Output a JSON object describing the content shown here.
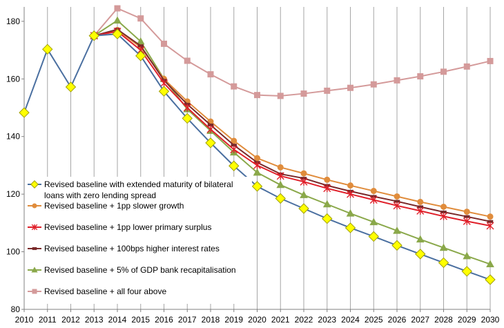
{
  "chart_data": {
    "type": "line",
    "title": "",
    "xlabel": "",
    "ylabel": "",
    "x": [
      2010,
      2011,
      2012,
      2013,
      2014,
      2015,
      2016,
      2017,
      2018,
      2019,
      2020,
      2021,
      2022,
      2023,
      2024,
      2025,
      2026,
      2027,
      2028,
      2029,
      2030
    ],
    "xlim": [
      2010,
      2030
    ],
    "ylim": [
      80,
      185
    ],
    "yticks": [
      80,
      100,
      120,
      140,
      160,
      180
    ],
    "grid": "vertical",
    "legend_position": "lower-left inside plot",
    "series": [
      {
        "name": "Revised baseline with extended maturity of bilateral loans with zero lending spread",
        "color": "#4a6fa0",
        "marker": "diamond",
        "marker_fill": "#ffff00",
        "marker_edge": "#a0a000",
        "x": [
          2010,
          2011,
          2012,
          2013,
          2014,
          2015,
          2016,
          2017,
          2018,
          2019,
          2020,
          2021,
          2022,
          2023,
          2024,
          2025,
          2026,
          2027,
          2028,
          2029,
          2030
        ],
        "values": [
          148.3,
          170.3,
          157.2,
          175.0,
          175.6,
          168.0,
          155.7,
          146.3,
          137.8,
          129.8,
          122.7,
          118.5,
          115.0,
          111.5,
          108.3,
          105.3,
          102.2,
          99.2,
          96.2,
          93.2,
          90.3
        ]
      },
      {
        "name": "Revised baseline + 1pp slower growth",
        "color": "#e08c3c",
        "marker": "circle",
        "marker_fill": "#e08c3c",
        "marker_edge": "#e08c3c",
        "x": [
          2013,
          2014,
          2015,
          2016,
          2017,
          2018,
          2019,
          2020,
          2021,
          2022,
          2023,
          2024,
          2025,
          2026,
          2027,
          2028,
          2029,
          2030
        ],
        "values": [
          175.0,
          177.0,
          171.0,
          160.0,
          152.2,
          145.2,
          138.5,
          132.5,
          129.3,
          127.2,
          125.0,
          123.0,
          121.1,
          119.2,
          117.3,
          115.6,
          113.9,
          112.2
        ]
      },
      {
        "name": "Revised baseline + 1pp lower primary surplus",
        "color": "#e0202a",
        "marker": "star",
        "marker_fill": "#e0202a",
        "marker_edge": "#e0202a",
        "x": [
          2013,
          2014,
          2015,
          2016,
          2017,
          2018,
          2019,
          2020,
          2021,
          2022,
          2023,
          2024,
          2025,
          2026,
          2027,
          2028,
          2029,
          2030
        ],
        "values": [
          175.0,
          176.5,
          170.0,
          158.5,
          150.0,
          142.5,
          135.5,
          130.0,
          126.3,
          124.3,
          122.0,
          120.0,
          118.0,
          116.0,
          114.2,
          112.3,
          110.6,
          109.0
        ]
      },
      {
        "name": "Revised baseline + 100bps higher interest rates",
        "color": "#7a2a2a",
        "marker": "dash",
        "marker_fill": "#7a2a2a",
        "marker_edge": "#7a2a2a",
        "x": [
          2013,
          2014,
          2015,
          2016,
          2017,
          2018,
          2019,
          2020,
          2021,
          2022,
          2023,
          2024,
          2025,
          2026,
          2027,
          2028,
          2029,
          2030
        ],
        "values": [
          175.0,
          177.2,
          171.5,
          159.5,
          151.2,
          144.0,
          137.0,
          131.0,
          127.0,
          125.5,
          123.0,
          121.0,
          119.2,
          117.5,
          115.6,
          113.8,
          112.2,
          110.5
        ]
      },
      {
        "name": "Revised baseline + 5% of GDP bank recapitalisation",
        "color": "#8aa84a",
        "marker": "triangle",
        "marker_fill": "#8aa84a",
        "marker_edge": "#8aa84a",
        "x": [
          2013,
          2014,
          2015,
          2016,
          2017,
          2018,
          2019,
          2020,
          2021,
          2022,
          2023,
          2024,
          2025,
          2026,
          2027,
          2028,
          2029,
          2030
        ],
        "values": [
          175.0,
          180.3,
          173.0,
          160.0,
          149.5,
          142.0,
          134.5,
          127.5,
          123.2,
          119.7,
          116.5,
          113.3,
          110.3,
          107.3,
          104.3,
          101.4,
          98.5,
          95.7
        ]
      },
      {
        "name": "Revised baseline + all four above",
        "color": "#d49a9a",
        "marker": "square",
        "marker_fill": "#d49a9a",
        "marker_edge": "#d49a9a",
        "x": [
          2013,
          2014,
          2015,
          2016,
          2017,
          2018,
          2019,
          2020,
          2021,
          2022,
          2023,
          2024,
          2025,
          2026,
          2027,
          2028,
          2029,
          2030
        ],
        "values": [
          175.0,
          184.5,
          181.0,
          172.2,
          166.3,
          161.6,
          157.4,
          154.4,
          154.1,
          154.9,
          155.9,
          156.9,
          158.1,
          159.5,
          160.9,
          162.5,
          164.3,
          166.2
        ]
      }
    ]
  }
}
